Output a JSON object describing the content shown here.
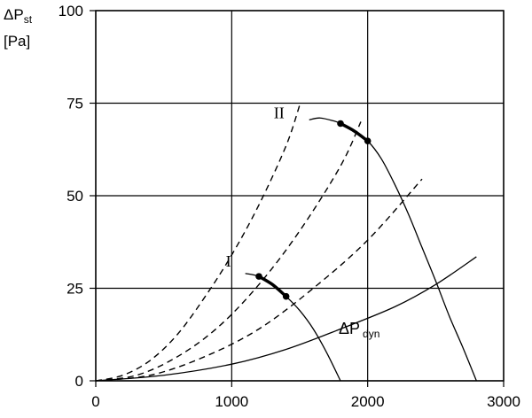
{
  "chart_data": {
    "type": "line",
    "ylabel": {
      "main": "ΔP",
      "sub": "st",
      "unit": "[Pa]"
    },
    "xlim": [
      0,
      3000
    ],
    "ylim": [
      0,
      100
    ],
    "xticks": [
      0,
      1000,
      2000,
      3000
    ],
    "yticks": [
      0,
      25,
      50,
      75,
      100
    ],
    "grid": true,
    "fan_curves": [
      {
        "name": "I",
        "points": [
          [
            1100,
            29
          ],
          [
            1200,
            28.2
          ],
          [
            1300,
            26
          ],
          [
            1400,
            22.8
          ],
          [
            1500,
            19
          ],
          [
            1600,
            14
          ],
          [
            1700,
            7.5
          ],
          [
            1800,
            0
          ]
        ],
        "highlight": [
          [
            1200,
            28.2
          ],
          [
            1300,
            26
          ],
          [
            1400,
            22.8
          ]
        ]
      },
      {
        "name": "II",
        "points": [
          [
            1570,
            70.5
          ],
          [
            1650,
            71
          ],
          [
            1750,
            70.2
          ],
          [
            1800,
            69.5
          ],
          [
            1900,
            67.5
          ],
          [
            2000,
            64.8
          ],
          [
            2100,
            60
          ],
          [
            2200,
            53
          ],
          [
            2300,
            45
          ],
          [
            2400,
            36
          ],
          [
            2500,
            27
          ],
          [
            2600,
            17.5
          ],
          [
            2700,
            9
          ],
          [
            2800,
            0
          ]
        ],
        "highlight": [
          [
            1800,
            69.5
          ],
          [
            1900,
            67.5
          ],
          [
            2000,
            64.8
          ]
        ]
      }
    ],
    "operating_points": [
      [
        1200,
        28.2
      ],
      [
        1400,
        22.8
      ],
      [
        1800,
        69.5
      ],
      [
        2000,
        64.8
      ]
    ],
    "system_curves": [
      {
        "points": [
          [
            0,
            0
          ],
          [
            200,
            1.5
          ],
          [
            400,
            5.5
          ],
          [
            600,
            12.5
          ],
          [
            800,
            22.5
          ],
          [
            1000,
            34
          ],
          [
            1200,
            47.5
          ],
          [
            1400,
            63.5
          ],
          [
            1500,
            74.5
          ]
        ]
      },
      {
        "points": [
          [
            0,
            0
          ],
          [
            300,
            1.5
          ],
          [
            600,
            6.5
          ],
          [
            900,
            14.5
          ],
          [
            1200,
            26
          ],
          [
            1500,
            40.5
          ],
          [
            1800,
            58
          ],
          [
            1950,
            70
          ]
        ]
      },
      {
        "points": [
          [
            0,
            0
          ],
          [
            400,
            1.5
          ],
          [
            800,
            6.5
          ],
          [
            1200,
            14
          ],
          [
            1600,
            25
          ],
          [
            2000,
            38
          ],
          [
            2400,
            54.5
          ]
        ]
      }
    ],
    "dynamic_pressure": {
      "label": "ΔP",
      "sub": "dyn",
      "points": [
        [
          0,
          0
        ],
        [
          500,
          1.5
        ],
        [
          1000,
          4.5
        ],
        [
          1400,
          8.5
        ],
        [
          1800,
          14
        ],
        [
          2200,
          20
        ],
        [
          2500,
          26
        ],
        [
          2800,
          33.5
        ]
      ]
    }
  }
}
